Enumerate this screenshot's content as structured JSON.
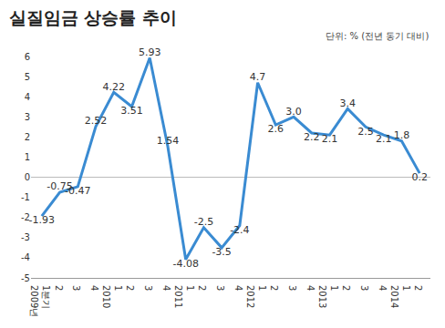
{
  "chart_data": {
    "type": "line",
    "title": "실질임금 상승률 추이",
    "subtitle": "단위: % (전년 동기 대비)",
    "categories": [
      "1분기",
      "2",
      "3",
      "4",
      "1",
      "2",
      "3",
      "4",
      "1",
      "2",
      "3",
      "4",
      "1",
      "2",
      "3",
      "4",
      "1",
      "2",
      "3",
      "4",
      "1",
      "2"
    ],
    "year_labels": [
      "2009년",
      null,
      null,
      null,
      "2010",
      null,
      null,
      null,
      "2011",
      null,
      null,
      null,
      "2012",
      null,
      null,
      null,
      "2013",
      null,
      null,
      null,
      "2014",
      null
    ],
    "values": [
      -1.93,
      -0.75,
      -0.47,
      2.52,
      4.22,
      3.51,
      5.93,
      1.54,
      -4.08,
      -2.5,
      -3.5,
      -2.4,
      4.7,
      2.6,
      3.0,
      2.2,
      2.1,
      3.4,
      2.5,
      2.1,
      1.8,
      0.2
    ],
    "value_labels": [
      "-1.93",
      "-0.75",
      "-0.47",
      "2.52",
      "4.22",
      "3.51",
      "5.93",
      "1.54",
      "-4.08",
      "-2.5",
      "-3.5",
      "-2.4",
      "4.7",
      "2.6",
      "3.0",
      "2.2",
      "2.1",
      "3.4",
      "2.5",
      "2.1",
      "1.8",
      "0.2"
    ],
    "color": "#3a8bd2",
    "ylim": [
      -5,
      6
    ],
    "yticks": [
      -5,
      -4,
      -3,
      -2,
      -1,
      0,
      1,
      2,
      3,
      4,
      5,
      6
    ],
    "grid": false,
    "data_labels": true
  }
}
